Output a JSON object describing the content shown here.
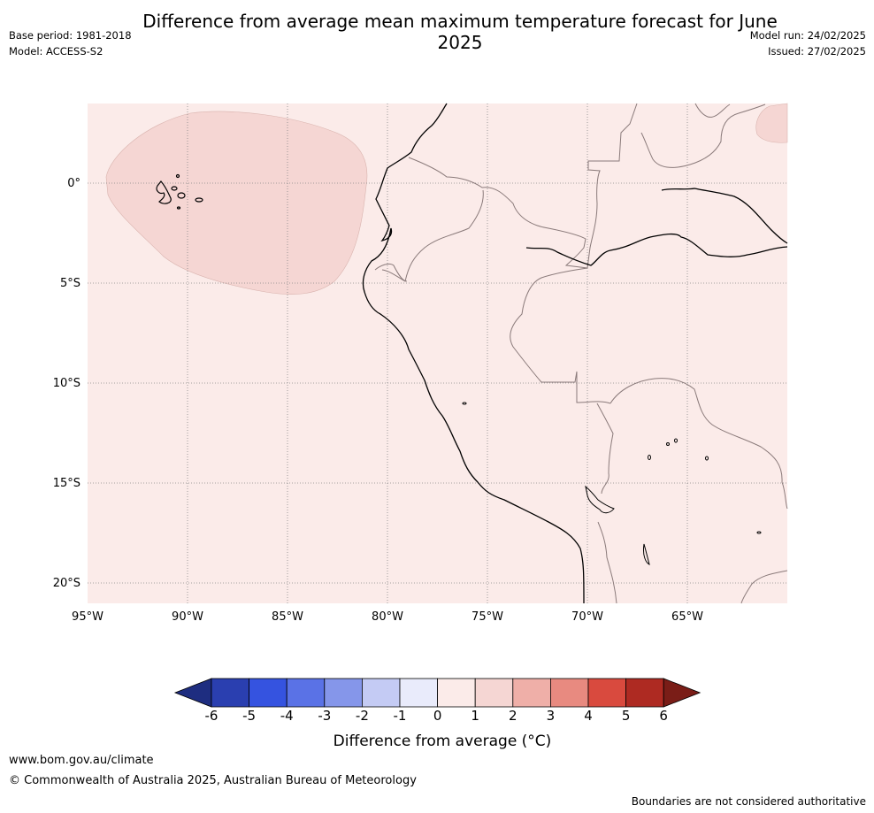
{
  "title": "Difference from average mean maximum temperature forecast for June 2025",
  "base_period": "Base period: 1981-2018",
  "model": "Model: ACCESS-S2",
  "model_run": "Model run: 24/02/2025",
  "issued": "Issued: 27/02/2025",
  "map": {
    "lat_labels": [
      "0°",
      "5°S",
      "10°S",
      "15°S",
      "20°S"
    ],
    "lon_labels": [
      "95°W",
      "90°W",
      "85°W",
      "80°W",
      "75°W",
      "70°W",
      "65°W"
    ],
    "background_anomaly_color": "#fbebe9",
    "highlight_anomaly_color": "#f5d6d3",
    "gridlines": "dotted"
  },
  "colorbar": {
    "label": "Difference from average (°C)",
    "ticks": [
      "-6",
      "-5",
      "-4",
      "-3",
      "-2",
      "-1",
      "0",
      "1",
      "2",
      "3",
      "4",
      "5",
      "6"
    ],
    "colors": [
      "#1e2d80",
      "#2a3fb0",
      "#3553e0",
      "#5a72e6",
      "#8596ea",
      "#c4cbf4",
      "#e9ebfb",
      "#fbebe9",
      "#f5d6d3",
      "#efafa8",
      "#e88a80",
      "#d94a3e",
      "#ae2a22",
      "#7a1d17"
    ]
  },
  "footer": {
    "url": "www.bom.gov.au/climate",
    "copyright": "© Commonwealth of Australia 2025, Australian Bureau of Meteorology",
    "note": "Boundaries are not considered authoritative"
  }
}
